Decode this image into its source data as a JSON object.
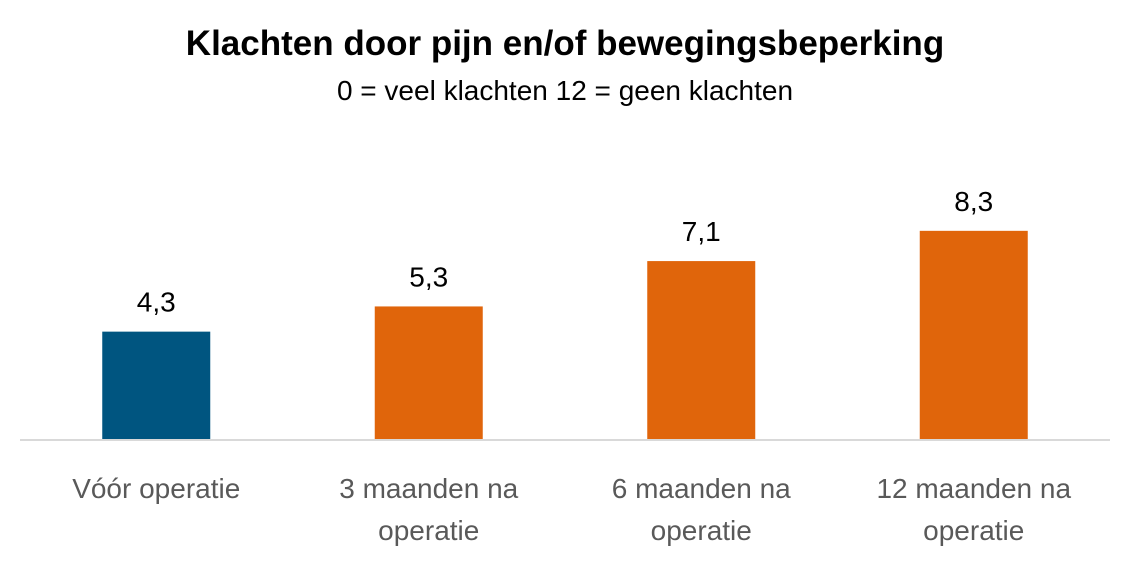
{
  "chart_data": {
    "type": "bar",
    "title": "Klachten door pijn en/of bewegingsbeperking",
    "subtitle": "0 = veel klachten  12 = geen klachten",
    "categories": [
      [
        "Vóór operatie"
      ],
      [
        "3 maanden na",
        "operatie"
      ],
      [
        "6 maanden na",
        "operatie"
      ],
      [
        "12 maanden na",
        "operatie"
      ]
    ],
    "values": [
      4.3,
      5.3,
      7.1,
      8.3
    ],
    "value_labels": [
      "4,3",
      "5,3",
      "7,1",
      "8,3"
    ],
    "bar_colors": [
      "#005580",
      "#E0650B",
      "#E0650B",
      "#E0650B"
    ],
    "ylim": [
      0,
      12
    ],
    "grid": false,
    "legend": "none"
  }
}
